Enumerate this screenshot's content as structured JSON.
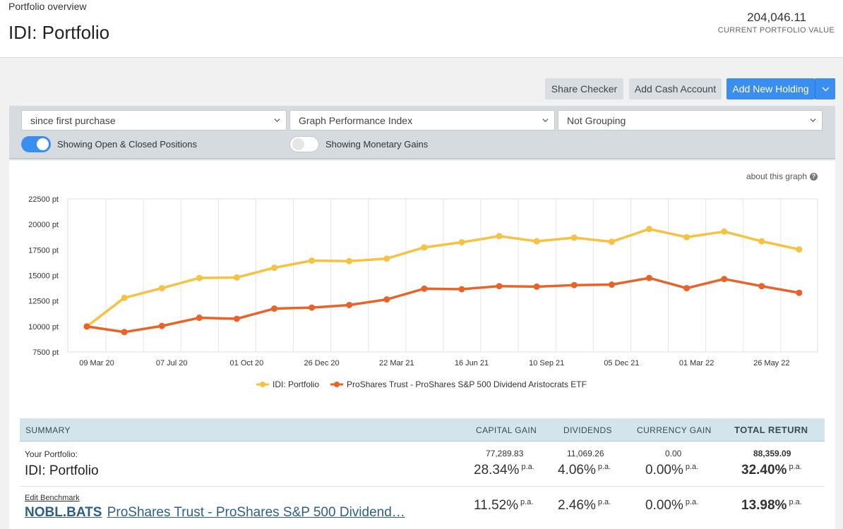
{
  "header": {
    "breadcrumb": "Portfolio overview",
    "title": "IDI: Portfolio",
    "portfolio_value": "204,046.11",
    "portfolio_value_label": "CURRENT PORTFOLIO VALUE"
  },
  "toolbar": {
    "share_checker": "Share Checker",
    "add_cash": "Add Cash Account",
    "add_holding": "Add New Holding"
  },
  "filters": {
    "period": "since first purchase",
    "graph_type": "Graph Performance Index",
    "grouping": "Not Grouping",
    "toggle_positions_label": "Showing Open & Closed Positions",
    "toggle_positions_on": true,
    "toggle_gains_label": "Showing Monetary Gains",
    "toggle_gains_on": false
  },
  "about_graph": "about this graph",
  "colors": {
    "portfolio": "#f5c244",
    "benchmark": "#e8632a",
    "accent": "#3a8ef0"
  },
  "chart_data": {
    "type": "line",
    "ylim": [
      7500,
      22500
    ],
    "yticks": [
      7500,
      10000,
      12500,
      15000,
      17500,
      20000,
      22500
    ],
    "ytick_labels": [
      "7500 pt",
      "10000 pt",
      "12500 pt",
      "15000 pt",
      "17500 pt",
      "20000 pt",
      "22500 pt"
    ],
    "xtick_labels": [
      "09 Mar 20",
      "07 Jul 20",
      "01 Oct 20",
      "26 Dec 20",
      "22 Mar 21",
      "16 Jun 21",
      "10 Sep 21",
      "05 Dec 21",
      "01 Mar 22",
      "26 May 22"
    ],
    "series": [
      {
        "name": "IDI: Portfolio",
        "color": "#f5c244",
        "values": [
          10000,
          12800,
          13750,
          14750,
          14800,
          15750,
          16450,
          16400,
          16650,
          17750,
          18250,
          18850,
          18350,
          18700,
          18300,
          19550,
          18750,
          19300,
          18350,
          17550
        ]
      },
      {
        "name": "ProShares Trust - ProShares S&P 500 Dividend Aristocrats ETF",
        "color": "#e8632a",
        "values": [
          10000,
          9450,
          10050,
          10850,
          10750,
          11750,
          11850,
          12100,
          12650,
          13700,
          13650,
          13950,
          13900,
          14050,
          14100,
          14750,
          13750,
          14650,
          13950,
          13300
        ]
      }
    ]
  },
  "summary": {
    "headers": {
      "summary": "SUMMARY",
      "capital_gain": "CAPITAL GAIN",
      "dividends": "DIVIDENDS",
      "currency_gain": "CURRENCY GAIN",
      "total_return": "TOTAL RETURN"
    },
    "portfolio_row": {
      "label": "Your Portfolio:",
      "name": "IDI: Portfolio",
      "capital_gain_value": "77,289.83",
      "capital_gain_pct": "28.34%",
      "dividends_value": "11,069.26",
      "dividends_pct": "4.06%",
      "currency_gain_value": "0.00",
      "currency_gain_pct": "0.00%",
      "total_return_value": "88,359.09",
      "total_return_pct": "32.40%",
      "pa": "p.a."
    },
    "benchmark_row": {
      "edit_label": "Edit Benchmark",
      "ticker": "NOBL.BATS",
      "name": "ProShares Trust - ProShares S&P 500 Dividend…",
      "capital_gain_pct": "11.52%",
      "dividends_pct": "2.46%",
      "currency_gain_pct": "0.00%",
      "total_return_pct": "13.98%",
      "pa": "p.a."
    }
  }
}
